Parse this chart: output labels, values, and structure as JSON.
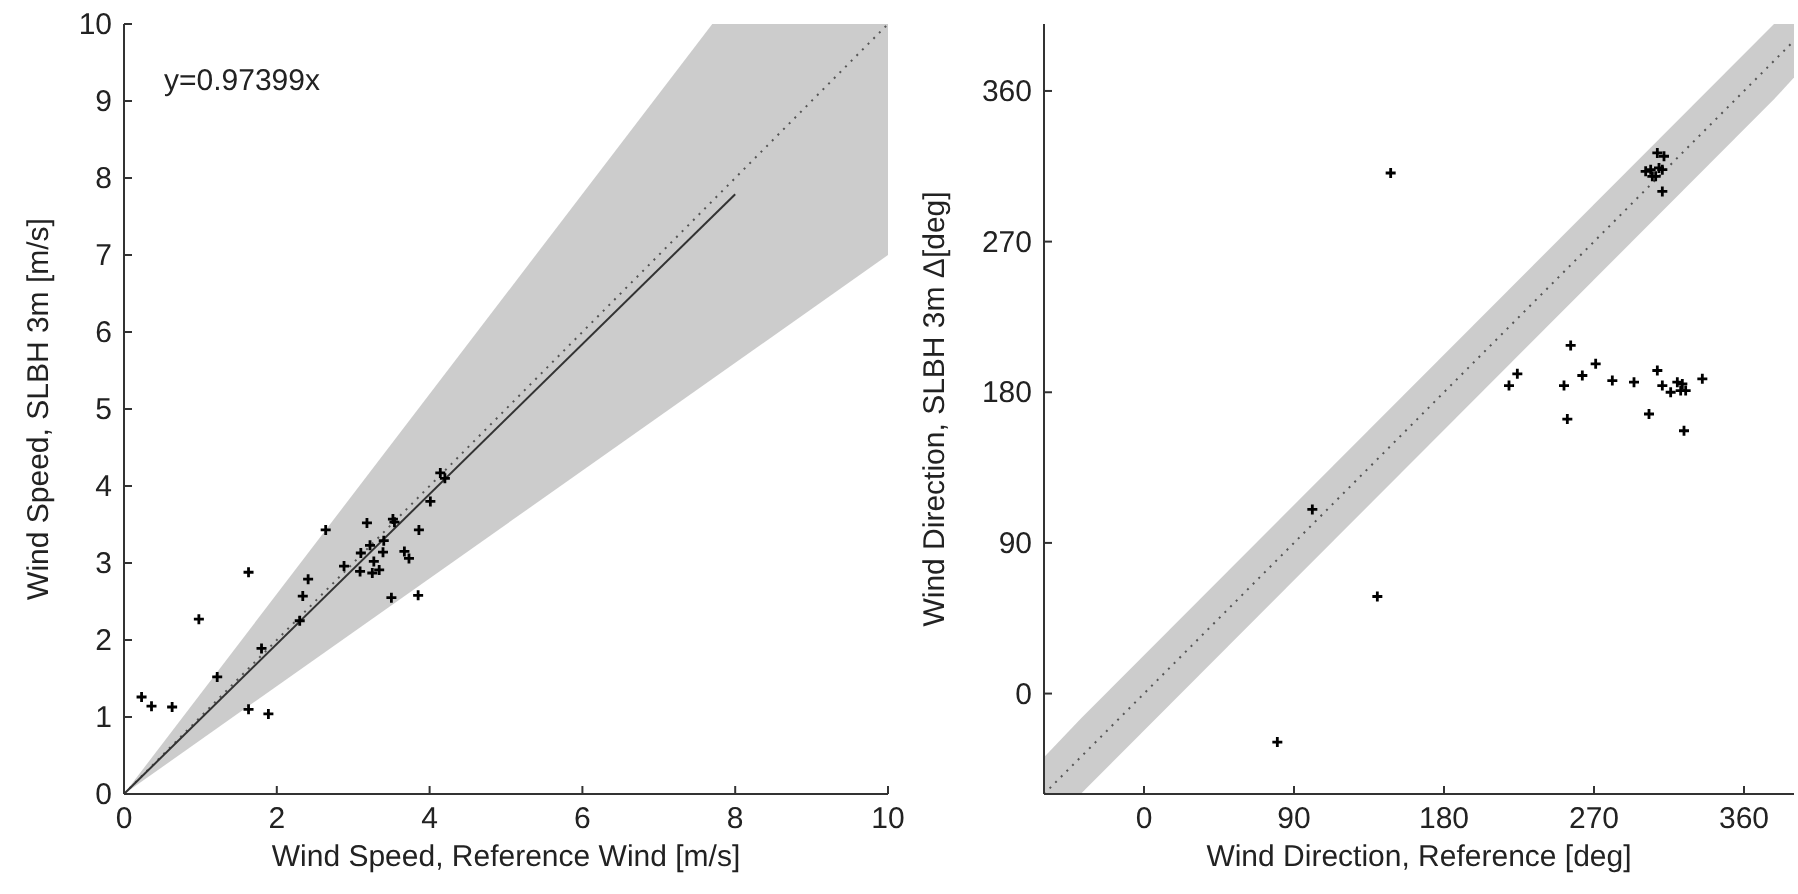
{
  "chart_data": [
    {
      "type": "scatter",
      "xlabel": "Wind Speed, Reference Wind [m/s]",
      "ylabel": "Wind Speed, SLBH 3m [m/s]",
      "annotations": [
        "y=0.97399x"
      ],
      "xlim": [
        0,
        10
      ],
      "ylim": [
        0,
        10
      ],
      "xticks": [
        0,
        2,
        4,
        6,
        8,
        10
      ],
      "yticks": [
        0,
        1,
        2,
        3,
        4,
        5,
        6,
        7,
        8,
        9,
        10
      ],
      "grid": false,
      "series": [
        {
          "type": "line",
          "color": "#555555",
          "line_style": "dotted",
          "x": [
            0,
            7.7,
            10
          ],
          "values": [
            0,
            7.7,
            10
          ],
          "lower": [
            0,
            5.39,
            7
          ],
          "upper": [
            0,
            10,
            10
          ]
        },
        {
          "type": "line",
          "color": "#333333",
          "line_style": "solid",
          "x": [
            0,
            8
          ],
          "values": [
            0,
            7.79
          ]
        },
        {
          "color": "#000000",
          "marker": "cross",
          "x": [
            0.23,
            0.36,
            0.63,
            0.98,
            1.22,
            1.63,
            1.63,
            1.8,
            1.89,
            2.3,
            2.34,
            2.41,
            2.64,
            2.88,
            3.09,
            3.1,
            3.18,
            3.22,
            3.25,
            3.27,
            3.34,
            3.39,
            3.4,
            3.5,
            3.52,
            3.54,
            3.67,
            3.73,
            3.85,
            3.86,
            4.01,
            4.14,
            4.2
          ],
          "values": [
            1.26,
            1.14,
            1.13,
            2.27,
            1.52,
            2.88,
            1.1,
            1.89,
            1.04,
            2.25,
            2.57,
            2.79,
            3.43,
            2.96,
            2.89,
            3.13,
            3.52,
            3.23,
            2.87,
            3.02,
            2.91,
            3.14,
            3.29,
            2.55,
            3.57,
            3.53,
            3.15,
            3.06,
            2.58,
            3.43,
            3.8,
            4.17,
            4.1
          ]
        }
      ]
    },
    {
      "type": "scatter",
      "xlabel": "Wind Direction, Reference [deg]",
      "ylabel": "Wind Direction, SLBH 3m Δ[deg]",
      "xlim": [
        -60,
        390
      ],
      "ylim": [
        -60,
        400
      ],
      "xticks": [
        0,
        90,
        180,
        270,
        360
      ],
      "yticks": [
        0,
        90,
        180,
        270,
        360
      ],
      "grid": false,
      "series": [
        {
          "type": "line",
          "color": "#555555",
          "line_style": "dotted",
          "x": [
            -60,
            -38,
            378,
            390
          ],
          "values": [
            -60,
            -38,
            378,
            390
          ],
          "lower": [
            -60,
            -60,
            355,
            368
          ],
          "upper": [
            -38,
            -15,
            400,
            400
          ]
        },
        {
          "color": "#000000",
          "marker": "cross",
          "x": [
            148,
            308,
            312,
            301,
            304,
            305,
            309,
            311,
            307,
            311,
            256,
            219,
            224,
            252,
            254,
            263,
            271,
            281,
            294,
            303,
            308,
            311,
            316,
            320,
            323,
            322,
            325,
            324,
            335,
            101,
            140,
            80
          ],
          "values": [
            311,
            323,
            321,
            312,
            313,
            309,
            314,
            313,
            309,
            300,
            208,
            184,
            191,
            184,
            164,
            190,
            197,
            187,
            186,
            167,
            193,
            184,
            180,
            186,
            185,
            181,
            181,
            157,
            188,
            110,
            58,
            -29
          ]
        }
      ]
    }
  ]
}
